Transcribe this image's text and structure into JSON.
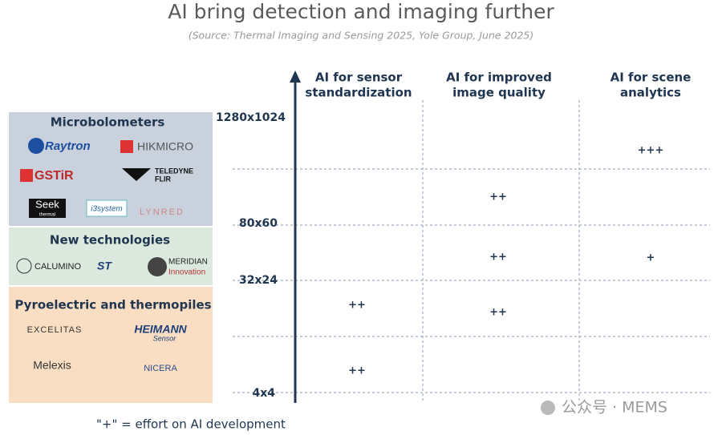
{
  "header": {
    "title": "AI bring detection and imaging further",
    "subtitle": "(Source: Thermal Imaging and Sensing 2025, Yole Group, June 2025)"
  },
  "groups": [
    {
      "label": "Microbolometers",
      "logos": [
        "Raytron",
        "HIKMICRO",
        "GSTiR",
        "TELEDYNE",
        "FLIR",
        "Seek",
        "thermal",
        "i3system",
        "LYNRED"
      ]
    },
    {
      "label": "New technologies",
      "logos": [
        "CALUMINO",
        "ST",
        "MERIDIAN",
        "Innovation"
      ]
    },
    {
      "label": "Pyroelectric and thermopiles",
      "logos": [
        "EXCELITAS",
        "HEIMANN",
        "Sensor",
        "Melexis",
        "NICERA"
      ]
    }
  ],
  "axis": {
    "labels": [
      "1280x1024",
      "80x60",
      "32x24",
      "4x4"
    ]
  },
  "columns": [
    [
      "AI for sensor",
      "standardization"
    ],
    [
      "AI for improved",
      "image quality"
    ],
    [
      "AI for scene",
      "analytics"
    ]
  ],
  "cells": [
    "+++",
    "++",
    "++",
    "+",
    "++",
    "++",
    "++"
  ],
  "footnote": "\"+\" = effort on AI development",
  "watermark": "公众号 · MEMS"
}
